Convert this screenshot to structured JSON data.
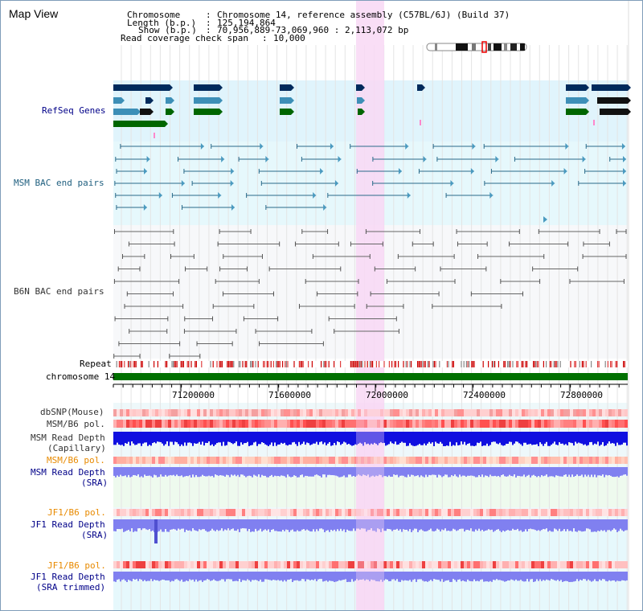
{
  "panel": {
    "title": "Map View"
  },
  "info": {
    "chromosome_key": "Chromosome",
    "chromosome_value": "Chromosome 14, reference assembly (C57BL/6J) (Build 37)",
    "length_key": "Length (b.p.)",
    "length_value": "125,194,864",
    "show_key": "Show (b.p.)",
    "show_value": "70,956,889-73,069,960 : 2,113,072 bp",
    "span_key": "Read coverage check span",
    "span_value": "10,000",
    "sep": ":"
  },
  "tracks": {
    "refseq": "RefSeq Genes",
    "msm_bac": "MSM BAC end pairs",
    "b6n_bac": "B6N BAC end pairs",
    "repeat": "Repeat",
    "chromosome": "chromosome 14",
    "dbsnp": "dbSNP(Mouse)",
    "msm_b6_pol": "MSM/B6 pol.",
    "msm_read_depth_cap_1": "MSM Read Depth",
    "msm_read_depth_cap_2": "(Capillary)",
    "msm_b6_pol_sra": "MSM/B6 pol.",
    "msm_read_depth_sra_1": "MSM Read Depth",
    "msm_read_depth_sra_2": "(SRA)",
    "jf1_b6_pol": "JF1/B6 pol.",
    "jf1_read_depth_1": "JF1 Read Depth",
    "jf1_read_depth_2": "(SRA)",
    "jf1_b6_pol_trim": "JF1/B6 pol.",
    "jf1_read_depth_trim_1": "JF1 Read Depth",
    "jf1_read_depth_trim_2": "(SRA trimmed)"
  },
  "axis": {
    "ticks": [
      "71200000",
      "71600000",
      "72000000",
      "72400000",
      "72800000"
    ]
  },
  "colors": {
    "refseq_bg": "#e0f4fc",
    "msm_bg": "#e6f8fc",
    "highlight": "#f8d8f4",
    "chromosome_bar": "#007000",
    "gene_navy": "#002a5c",
    "gene_teal": "#3d8fb7",
    "gene_green": "#006600",
    "msm_line": "#2a6a8a",
    "b6n_line": "#666666",
    "read_depth_blue": "#1010e0",
    "read_depth_sra": "#8080f0"
  }
}
